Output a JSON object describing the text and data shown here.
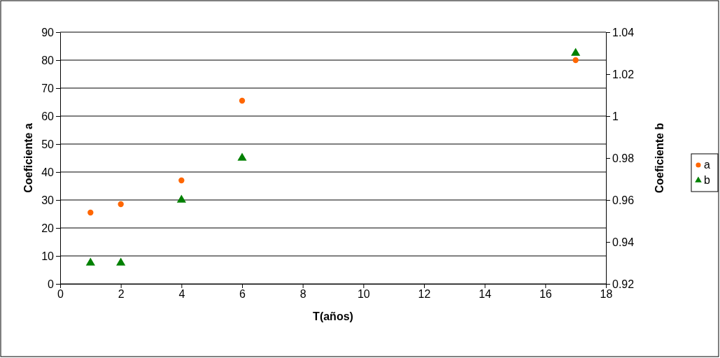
{
  "chart_data": {
    "type": "scatter",
    "xlabel": "T(años)",
    "ylabel": "Coeficiente a",
    "y2label": "Coeficiente b",
    "x": [
      1,
      2,
      4,
      6,
      17
    ],
    "series": [
      {
        "name": "a",
        "color": "#ff6600",
        "marker": "circle",
        "values": [
          25.5,
          28.5,
          37,
          65.5,
          80
        ]
      },
      {
        "name": "b",
        "color": "#008000",
        "marker": "triangle",
        "axis": "y2",
        "values": [
          0.93,
          0.93,
          0.96,
          0.98,
          1.03
        ]
      }
    ],
    "xlim": [
      0,
      18
    ],
    "xticks": [
      0,
      2,
      4,
      6,
      8,
      10,
      12,
      14,
      16,
      18
    ],
    "ylim": [
      0,
      90
    ],
    "yticks": [
      0,
      10,
      20,
      30,
      40,
      50,
      60,
      70,
      80,
      90
    ],
    "y2lim": [
      0.92,
      1.04
    ],
    "y2ticks": [
      0.92,
      0.94,
      0.96,
      0.98,
      1,
      1.02,
      1.04
    ],
    "grid": "y",
    "legend": "right"
  }
}
